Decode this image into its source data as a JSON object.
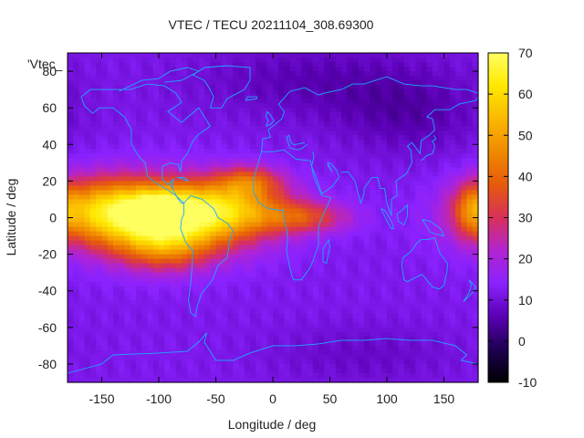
{
  "chart_data": {
    "type": "heatmap",
    "title": "VTEC / TECU 20211104_308.69300",
    "xlabel": "Longitude / deg",
    "ylabel": "Latitude / deg",
    "xlim": [
      -180,
      180
    ],
    "ylim": [
      -90,
      90
    ],
    "xticks": [
      "-150",
      "-100",
      "-50",
      "0",
      "50",
      "100",
      "150"
    ],
    "xtick_values": [
      -150,
      -100,
      -50,
      0,
      50,
      100,
      150
    ],
    "yticks": [
      "80",
      "60",
      "40",
      "20",
      "0",
      "-20",
      "-40",
      "-60",
      "-80"
    ],
    "ytick_values": [
      80,
      60,
      40,
      20,
      0,
      -20,
      -40,
      -60,
      -80
    ],
    "legend_key": "'Vtec_",
    "colorbar": {
      "range": [
        -10,
        70
      ],
      "ticks": [
        "70",
        "60",
        "50",
        "40",
        "30",
        "20",
        "10",
        "0",
        "-10"
      ],
      "tick_values": [
        70,
        60,
        50,
        40,
        30,
        20,
        10,
        0,
        -10
      ],
      "colormap": [
        "#000000",
        "#1e0052",
        "#5a00b4",
        "#8a22ff",
        "#b224d0",
        "#d8305a",
        "#e65a0c",
        "#f08a00",
        "#fab800",
        "#ffe800",
        "#ffff60"
      ]
    },
    "grid_resolution_deg": [
      5,
      2.5
    ],
    "background_level_tecu": 12,
    "features_tecu": [
      {
        "lon": -95,
        "lat": 0,
        "peak": 48,
        "lon_width": 55,
        "lat_width": 14
      },
      {
        "lon": -100,
        "lat": 4,
        "peak": 18,
        "lon_width": 18,
        "lat_width": 8
      },
      {
        "lon": -95,
        "lat": -17,
        "peak": 18,
        "lon_width": 28,
        "lat_width": 9
      },
      {
        "lon": -150,
        "lat": 5,
        "peak": 24,
        "lon_width": 30,
        "lat_width": 12
      },
      {
        "lon": -40,
        "lat": 5,
        "peak": 24,
        "lon_width": 40,
        "lat_width": 10
      },
      {
        "lon": -20,
        "lat": 20,
        "peak": 20,
        "lon_width": 20,
        "lat_width": 6
      },
      {
        "lon": 30,
        "lat": 0,
        "peak": 18,
        "lon_width": 28,
        "lat_width": 6
      },
      {
        "lon": 175,
        "lat": 5,
        "peak": 16,
        "lon_width": 12,
        "lat_width": 10
      },
      {
        "lon": 40,
        "lat": 75,
        "peak": -6,
        "lon_width": 80,
        "lat_width": 15
      },
      {
        "lon": 120,
        "lat": 55,
        "peak": -6,
        "lon_width": 45,
        "lat_width": 15
      },
      {
        "lon": 80,
        "lat": -75,
        "peak": -4,
        "lon_width": 60,
        "lat_width": 12
      }
    ]
  }
}
